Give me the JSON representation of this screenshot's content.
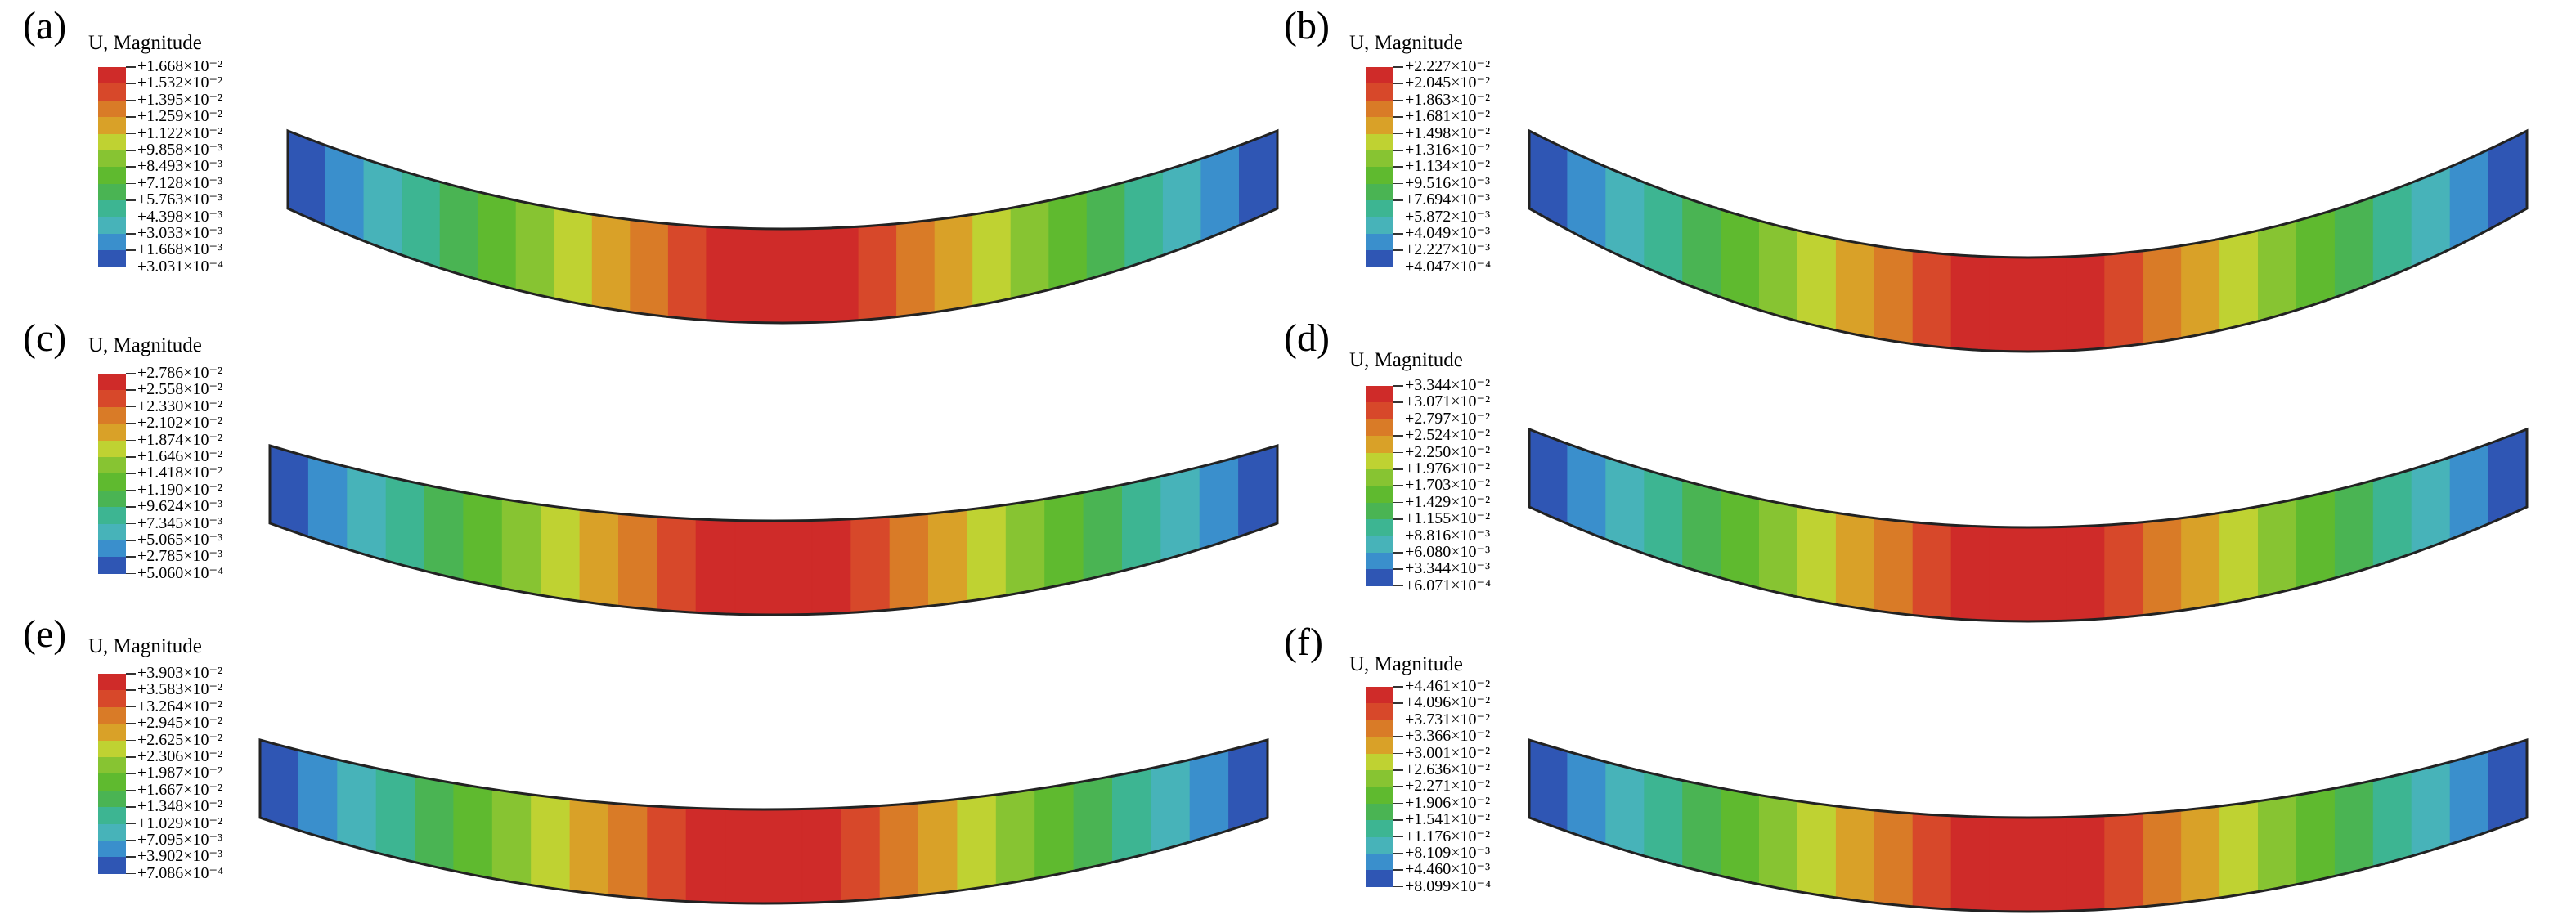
{
  "legend_title": "U, Magnitude",
  "colors": [
    "#2a3fa2",
    "#2f56b4",
    "#3a8fcc",
    "#47b3b9",
    "#3db592",
    "#4ab453",
    "#5fba2f",
    "#87c432",
    "#bfd232",
    "#d9a128",
    "#d97b27",
    "#d7482a",
    "#cf2b29"
  ],
  "panels": [
    {
      "label": "(a)",
      "values": [
        "+1.668×10⁻²",
        "+1.532×10⁻²",
        "+1.395×10⁻²",
        "+1.259×10⁻²",
        "+1.122×10⁻²",
        "+9.858×10⁻³",
        "+8.493×10⁻³",
        "+7.128×10⁻³",
        "+5.763×10⁻³",
        "+4.398×10⁻³",
        "+3.033×10⁻³",
        "+1.668×10⁻³",
        "+3.031×10⁻⁴"
      ]
    },
    {
      "label": "(b)",
      "values": [
        "+2.227×10⁻²",
        "+2.045×10⁻²",
        "+1.863×10⁻²",
        "+1.681×10⁻²",
        "+1.498×10⁻²",
        "+1.316×10⁻²",
        "+1.134×10⁻²",
        "+9.516×10⁻³",
        "+7.694×10⁻³",
        "+5.872×10⁻³",
        "+4.049×10⁻³",
        "+2.227×10⁻³",
        "+4.047×10⁻⁴"
      ]
    },
    {
      "label": "(c)",
      "values": [
        "+2.786×10⁻²",
        "+2.558×10⁻²",
        "+2.330×10⁻²",
        "+2.102×10⁻²",
        "+1.874×10⁻²",
        "+1.646×10⁻²",
        "+1.418×10⁻²",
        "+1.190×10⁻²",
        "+9.624×10⁻³",
        "+7.345×10⁻³",
        "+5.065×10⁻³",
        "+2.785×10⁻³",
        "+5.060×10⁻⁴"
      ]
    },
    {
      "label": "(d)",
      "values": [
        "+3.344×10⁻²",
        "+3.071×10⁻²",
        "+2.797×10⁻²",
        "+2.524×10⁻²",
        "+2.250×10⁻²",
        "+1.976×10⁻²",
        "+1.703×10⁻²",
        "+1.429×10⁻²",
        "+1.155×10⁻²",
        "+8.816×10⁻³",
        "+6.080×10⁻³",
        "+3.344×10⁻³",
        "+6.071×10⁻⁴"
      ]
    },
    {
      "label": "(e)",
      "values": [
        "+3.903×10⁻²",
        "+3.583×10⁻²",
        "+3.264×10⁻²",
        "+2.945×10⁻²",
        "+2.625×10⁻²",
        "+2.306×10⁻²",
        "+1.987×10⁻²",
        "+1.667×10⁻²",
        "+1.348×10⁻²",
        "+1.029×10⁻²",
        "+7.095×10⁻³",
        "+3.902×10⁻³",
        "+7.086×10⁻⁴"
      ]
    },
    {
      "label": "(f)",
      "values": [
        "+4.461×10⁻²",
        "+4.096×10⁻²",
        "+3.731×10⁻²",
        "+3.366×10⁻²",
        "+3.001×10⁻²",
        "+2.636×10⁻²",
        "+2.271×10⁻²",
        "+1.906×10⁻²",
        "+1.541×10⁻²",
        "+1.176×10⁻²",
        "+8.109×10⁻³",
        "+4.460×10⁻³",
        "+8.099×10⁻⁴"
      ]
    }
  ]
}
